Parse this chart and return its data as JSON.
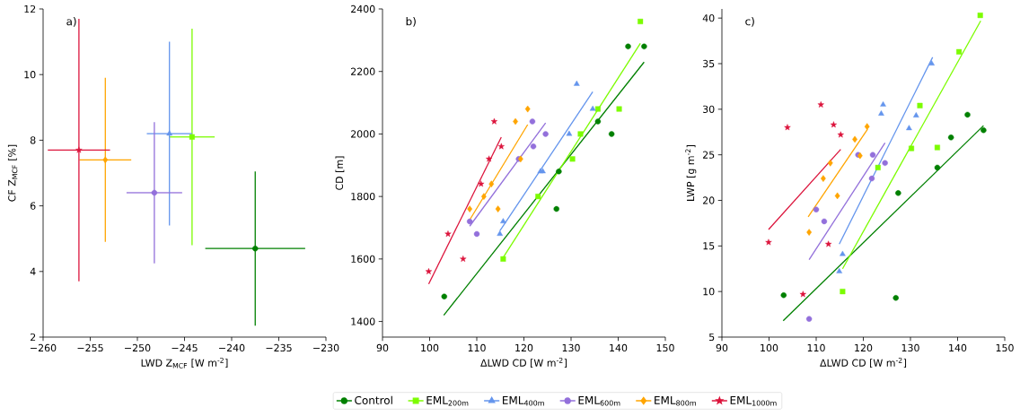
{
  "chart_data": [
    {
      "type": "scatter",
      "xlabel": "LWD Z$_{MCF}$ [W m$^{-2}$]",
      "ylabel": "CF Z$_{MCF}$ [%]",
      "annotations": [
        "a)"
      ],
      "xlim": [
        -260,
        -230
      ],
      "ylim": [
        2,
        12
      ],
      "xticks": [
        {
          "value": -260,
          "label": "−260"
        },
        {
          "value": -255,
          "label": "−255"
        },
        {
          "value": -250,
          "label": "−250"
        },
        {
          "value": -245,
          "label": "−245"
        },
        {
          "value": -240,
          "label": "−240"
        },
        {
          "value": -235,
          "label": "−235"
        },
        {
          "value": -230,
          "label": "−230"
        }
      ],
      "yticks": [
        2,
        4,
        6,
        8,
        10,
        12
      ],
      "legend": "bottom",
      "series": [
        {
          "name": "Control",
          "color": "#008000",
          "marker": "circle",
          "x": [
            -237.5
          ],
          "values": [
            4.7
          ],
          "errors": [
            2.35
          ],
          "xerrors": [
            5.3
          ]
        },
        {
          "name": "EML$_{200m}$",
          "color": "#7cfc00",
          "marker": "square",
          "x": [
            -244.2
          ],
          "values": [
            8.1
          ],
          "errors": [
            3.3
          ],
          "xerrors": [
            2.4
          ]
        },
        {
          "name": "EML$_{400m}$",
          "color": "#6495ed",
          "marker": "triangle",
          "x": [
            -246.6
          ],
          "values": [
            8.2
          ],
          "errors": [
            2.8
          ],
          "xerrors": [
            2.4
          ]
        },
        {
          "name": "EML$_{600m}$",
          "color": "#9370db",
          "marker": "circle",
          "x": [
            -248.2
          ],
          "values": [
            6.4
          ],
          "errors": [
            2.15
          ],
          "xerrors": [
            2.95
          ]
        },
        {
          "name": "EML$_{800m}$",
          "color": "#ffa500",
          "marker": "diamond",
          "x": [
            -253.4
          ],
          "values": [
            7.4
          ],
          "errors": [
            2.5
          ],
          "xerrors": [
            2.75
          ]
        },
        {
          "name": "EML$_{1000m}$",
          "color": "#dc143c",
          "marker": "star",
          "x": [
            -256.2
          ],
          "values": [
            7.7
          ],
          "errors": [
            4.0
          ],
          "xerrors": [
            3.3
          ]
        }
      ]
    },
    {
      "type": "scatter",
      "xlabel": "ΔLWD CD [W m$^{-2}$]",
      "ylabel": "CD [m]",
      "annotations": [
        "b)"
      ],
      "xlim": [
        90,
        150
      ],
      "ylim": [
        1350,
        2400
      ],
      "xticks": [
        90,
        100,
        110,
        120,
        130,
        140,
        150
      ],
      "yticks": [
        1400,
        1600,
        1800,
        2000,
        2200,
        2400
      ],
      "series": [
        {
          "color": "#008000",
          "type": "line",
          "x": [
            103.0,
            145.5
          ],
          "values": [
            1420,
            2230
          ]
        },
        {
          "color": "#7cfc00",
          "type": "line",
          "x": [
            115.4,
            144.7
          ],
          "values": [
            1600,
            2290
          ]
        },
        {
          "color": "#6495ed",
          "type": "line",
          "x": [
            114.9,
            134.6
          ],
          "values": [
            1690,
            2135
          ]
        },
        {
          "color": "#9370db",
          "type": "line",
          "x": [
            108.5,
            124.6
          ],
          "values": [
            1705,
            2035
          ]
        },
        {
          "color": "#ffa500",
          "type": "line",
          "x": [
            108.3,
            120.8
          ],
          "values": [
            1720,
            2030
          ]
        },
        {
          "color": "#dc143c",
          "type": "line",
          "x": [
            99.8,
            115.2
          ],
          "values": [
            1520,
            1990
          ]
        },
        {
          "color": "#008000",
          "marker": "circle",
          "x": [
            103.1,
            127.4,
            126.9,
            135.7,
            138.6,
            142.1,
            145.5
          ],
          "values": [
            1480,
            1880,
            1760,
            2040,
            2000,
            2280,
            2280
          ]
        },
        {
          "color": "#7cfc00",
          "marker": "square",
          "x": [
            115.6,
            123.0,
            130.3,
            132.0,
            135.7,
            140.2,
            144.7
          ],
          "values": [
            1600,
            1800,
            1920,
            2000,
            2080,
            2080,
            2360
          ]
        },
        {
          "color": "#6495ed",
          "marker": "triangle",
          "x": [
            114.9,
            115.6,
            123.5,
            124.0,
            129.6,
            131.2,
            134.6
          ],
          "values": [
            1680,
            1720,
            1880,
            1880,
            2000,
            2160,
            2080
          ]
        },
        {
          "color": "#9370db",
          "marker": "circle",
          "x": [
            108.5,
            110.0,
            111.7,
            118.9,
            121.8,
            122.0,
            124.6
          ],
          "values": [
            1720,
            1680,
            null,
            1920,
            2040,
            1960,
            2000
          ]
        },
        {
          "color": "#ffa500",
          "marker": "diamond",
          "x": [
            108.5,
            111.5,
            113.1,
            114.5,
            118.2,
            119.3,
            120.8
          ],
          "values": [
            1760,
            1800,
            1840,
            1760,
            2040,
            1920,
            2080
          ]
        },
        {
          "color": "#dc143c",
          "marker": "star",
          "x": [
            99.8,
            103.9,
            107.1,
            110.9,
            112.6,
            113.7,
            115.2
          ],
          "values": [
            1560,
            1680,
            1600,
            1840,
            1920,
            2040,
            1960
          ]
        }
      ]
    },
    {
      "type": "scatter",
      "xlabel": "ΔLWD CD [W m$^{-2}$]",
      "ylabel": "LWP [g m$^{-2}$]",
      "annotations": [
        "c)"
      ],
      "xlim": [
        90,
        150
      ],
      "ylim": [
        5,
        41
      ],
      "xticks": [
        90,
        100,
        110,
        120,
        130,
        140,
        150
      ],
      "yticks": [
        5,
        10,
        15,
        20,
        25,
        30,
        35,
        40
      ],
      "series": [
        {
          "color": "#008000",
          "type": "line",
          "x": [
            103.0,
            145.5
          ],
          "values": [
            6.8,
            28.2
          ]
        },
        {
          "color": "#7cfc00",
          "type": "line",
          "x": [
            115.6,
            144.9
          ],
          "values": [
            12.5,
            39.7
          ]
        },
        {
          "color": "#6495ed",
          "type": "line",
          "x": [
            114.9,
            134.7
          ],
          "values": [
            15.2,
            35.7
          ]
        },
        {
          "color": "#9370db",
          "type": "line",
          "x": [
            108.5,
            124.6
          ],
          "values": [
            13.5,
            26.3
          ]
        },
        {
          "color": "#ffa500",
          "type": "line",
          "x": [
            108.3,
            120.9
          ],
          "values": [
            18.2,
            27.8
          ]
        },
        {
          "color": "#dc143c",
          "type": "line",
          "x": [
            99.9,
            115.2
          ],
          "values": [
            16.8,
            25.6
          ]
        },
        {
          "color": "#008000",
          "marker": "circle",
          "x": [
            103.1,
            127.4,
            126.9,
            135.7,
            138.6,
            142.1,
            145.5
          ],
          "values": [
            9.6,
            20.8,
            9.3,
            23.6,
            26.9,
            29.4,
            27.7
          ]
        },
        {
          "color": "#7cfc00",
          "marker": "square",
          "x": [
            115.6,
            123.1,
            130.2,
            132.0,
            135.7,
            140.3,
            144.8
          ],
          "values": [
            10.0,
            23.6,
            25.7,
            30.4,
            25.8,
            36.3,
            40.3
          ]
        },
        {
          "color": "#6495ed",
          "marker": "triangle",
          "x": [
            114.9,
            115.6,
            123.8,
            124.2,
            129.7,
            131.2,
            134.5
          ],
          "values": [
            12.2,
            14.1,
            29.5,
            30.5,
            27.9,
            29.3,
            35.0
          ]
        },
        {
          "color": "#9370db",
          "marker": "circle",
          "x": [
            108.5,
            110.0,
            111.7,
            118.9,
            121.8,
            122.0,
            124.6
          ],
          "values": [
            7.0,
            19.0,
            17.7,
            25.0,
            22.4,
            25.0,
            24.1
          ]
        },
        {
          "color": "#ffa500",
          "marker": "diamond",
          "x": [
            108.5,
            111.5,
            113.0,
            114.5,
            118.2,
            119.3,
            120.8
          ],
          "values": [
            16.5,
            22.4,
            24.1,
            20.5,
            26.7,
            24.9,
            28.1
          ]
        },
        {
          "color": "#dc143c",
          "marker": "star",
          "x": [
            99.9,
            103.9,
            107.2,
            111.0,
            112.6,
            113.7,
            115.2
          ],
          "values": [
            15.4,
            28.0,
            9.7,
            30.5,
            15.2,
            28.3,
            27.2
          ]
        }
      ]
    }
  ]
}
